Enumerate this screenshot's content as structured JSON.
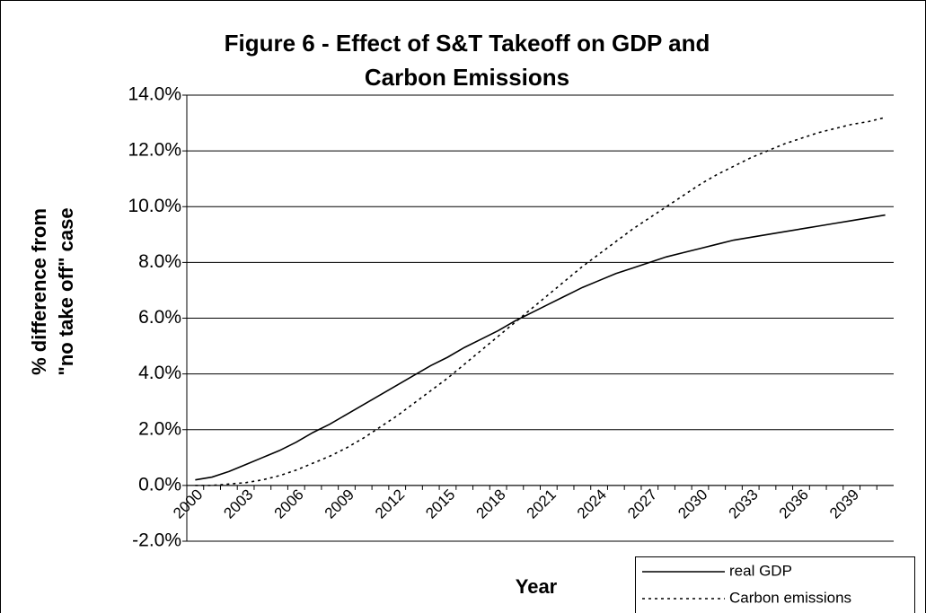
{
  "chart_data": {
    "type": "line",
    "title": [
      "Figure 6 - Effect of S&T Takeoff on GDP and",
      "Carbon Emissions"
    ],
    "y_label": [
      "% difference from",
      "\"no take off\" case"
    ],
    "x_label": "Year",
    "categories": [
      "2000",
      null,
      null,
      "2003",
      null,
      null,
      "2006",
      null,
      null,
      "2009",
      null,
      null,
      "2012",
      null,
      null,
      "2015",
      null,
      null,
      "2018",
      null,
      null,
      "2021",
      null,
      null,
      "2024",
      null,
      null,
      "2027",
      null,
      null,
      "2030",
      null,
      null,
      "2033",
      null,
      null,
      "2036",
      null,
      null,
      "2039",
      null,
      null
    ],
    "series": [
      {
        "name": "real GDP",
        "color": "#000000",
        "line_style": "solid",
        "values": [
          0.2,
          0.3,
          0.5,
          0.75,
          1.0,
          1.25,
          1.55,
          1.9,
          2.2,
          2.55,
          2.9,
          3.25,
          3.6,
          3.95,
          4.3,
          4.6,
          4.95,
          5.25,
          5.55,
          5.9,
          6.2,
          6.5,
          6.8,
          7.1,
          7.35,
          7.6,
          7.8,
          8.0,
          8.2,
          8.35,
          8.5,
          8.65,
          8.8,
          8.9,
          9.0,
          9.1,
          9.2,
          9.3,
          9.4,
          9.5,
          9.6,
          9.7
        ]
      },
      {
        "name": "Carbon emissions",
        "color": "#000000",
        "line_style": "dotted",
        "values": [
          0,
          0,
          0.05,
          0.1,
          0.2,
          0.35,
          0.55,
          0.8,
          1.05,
          1.35,
          1.7,
          2.1,
          2.5,
          2.95,
          3.4,
          3.85,
          4.35,
          4.85,
          5.35,
          5.85,
          6.35,
          6.85,
          7.35,
          7.85,
          8.3,
          8.75,
          9.2,
          9.6,
          10.0,
          10.4,
          10.8,
          11.15,
          11.45,
          11.75,
          12.0,
          12.25,
          12.45,
          12.65,
          12.8,
          12.95,
          13.05,
          13.2
        ]
      }
    ],
    "ylim": [
      -2,
      14
    ],
    "yticks": [
      {
        "value": -2,
        "label": "-2.0%"
      },
      {
        "value": 0,
        "label": "0.0%"
      },
      {
        "value": 2,
        "label": "2.0%"
      },
      {
        "value": 4,
        "label": "4.0%"
      },
      {
        "value": 6,
        "label": "6.0%"
      },
      {
        "value": 8,
        "label": "8.0%"
      },
      {
        "value": 10,
        "label": "10.0%"
      },
      {
        "value": 12,
        "label": "12.0%"
      },
      {
        "value": 14,
        "label": "14.0%"
      }
    ],
    "grid": true,
    "legend": "bottom-right"
  }
}
